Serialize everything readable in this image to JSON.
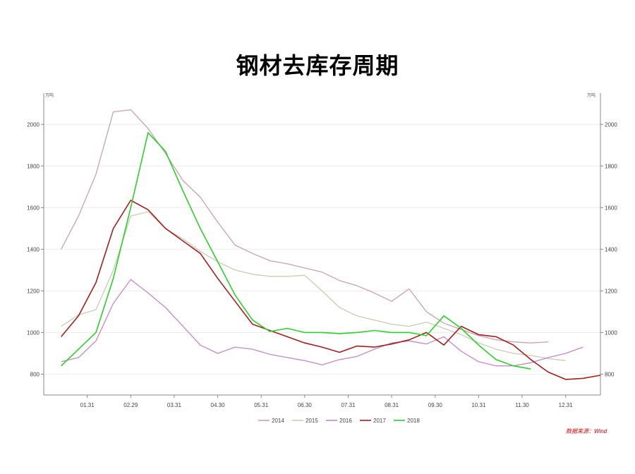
{
  "title": "钢材去库存周期",
  "chart_data": {
    "type": "line",
    "title": "钢材去库存周期",
    "y_unit_left": "万吨",
    "y_unit_right": "万吨",
    "ylim": [
      700,
      2150
    ],
    "yticks": [
      800,
      1000,
      1200,
      1400,
      1600,
      1800,
      2000
    ],
    "categories": [
      "01.31",
      "02.29",
      "03.31",
      "04.30",
      "05.31",
      "06.30",
      "07.31",
      "08.31",
      "09.30",
      "10.31",
      "11.30",
      "12.31"
    ],
    "x": [
      0.4,
      0.8,
      1.2,
      1.6,
      2.0,
      2.4,
      2.8,
      3.2,
      3.6,
      4.0,
      4.4,
      4.8,
      5.2,
      5.6,
      6.0,
      6.4,
      6.8,
      7.2,
      7.6,
      8.0,
      8.4,
      8.8,
      9.2,
      9.6,
      10.0,
      10.4,
      10.8,
      11.2,
      11.6,
      12.0,
      12.4,
      12.8
    ],
    "grid": true,
    "legend_position": "bottom",
    "series": [
      {
        "name": "2014",
        "color": "#c9a2ae",
        "values": [
          1400,
          1560,
          1760,
          2060,
          2070,
          1980,
          1860,
          1730,
          1650,
          1530,
          1420,
          1380,
          1345,
          1330,
          1310,
          1290,
          1250,
          1225,
          1190,
          1150,
          1210,
          1100,
          1045,
          1015,
          985,
          965,
          955,
          950,
          955,
          null,
          null,
          null
        ]
      },
      {
        "name": "2015",
        "color": "#c8cdb4",
        "values": [
          1030,
          1085,
          1110,
          1300,
          1560,
          1580,
          1500,
          1450,
          1390,
          1340,
          1300,
          1280,
          1270,
          1270,
          1275,
          1200,
          1120,
          1080,
          1060,
          1040,
          1030,
          1050,
          1020,
          990,
          950,
          920,
          900,
          890,
          875,
          865,
          null,
          null
        ]
      },
      {
        "name": "2016",
        "color": "#c489c8",
        "values": [
          860,
          880,
          960,
          1140,
          1255,
          1190,
          1120,
          1030,
          940,
          900,
          930,
          920,
          895,
          880,
          865,
          845,
          870,
          885,
          920,
          950,
          960,
          945,
          980,
          910,
          860,
          840,
          840,
          855,
          880,
          900,
          930,
          null
        ]
      },
      {
        "name": "2017",
        "color": "#a51e1e",
        "values": [
          980,
          1080,
          1240,
          1500,
          1635,
          1590,
          1500,
          1440,
          1380,
          1260,
          1150,
          1040,
          1010,
          980,
          950,
          930,
          905,
          935,
          930,
          945,
          965,
          1000,
          940,
          1030,
          990,
          980,
          940,
          870,
          810,
          775,
          780,
          795
        ]
      },
      {
        "name": "2018",
        "color": "#2ad12a",
        "values": [
          840,
          920,
          1000,
          1260,
          1600,
          1960,
          1870,
          1680,
          1500,
          1340,
          1180,
          1060,
          1005,
          1020,
          1000,
          1000,
          995,
          1000,
          1010,
          1000,
          1000,
          985,
          1080,
          1020,
          940,
          870,
          840,
          825,
          null,
          null,
          null,
          null
        ]
      }
    ],
    "source": "数据来源：Wind"
  }
}
